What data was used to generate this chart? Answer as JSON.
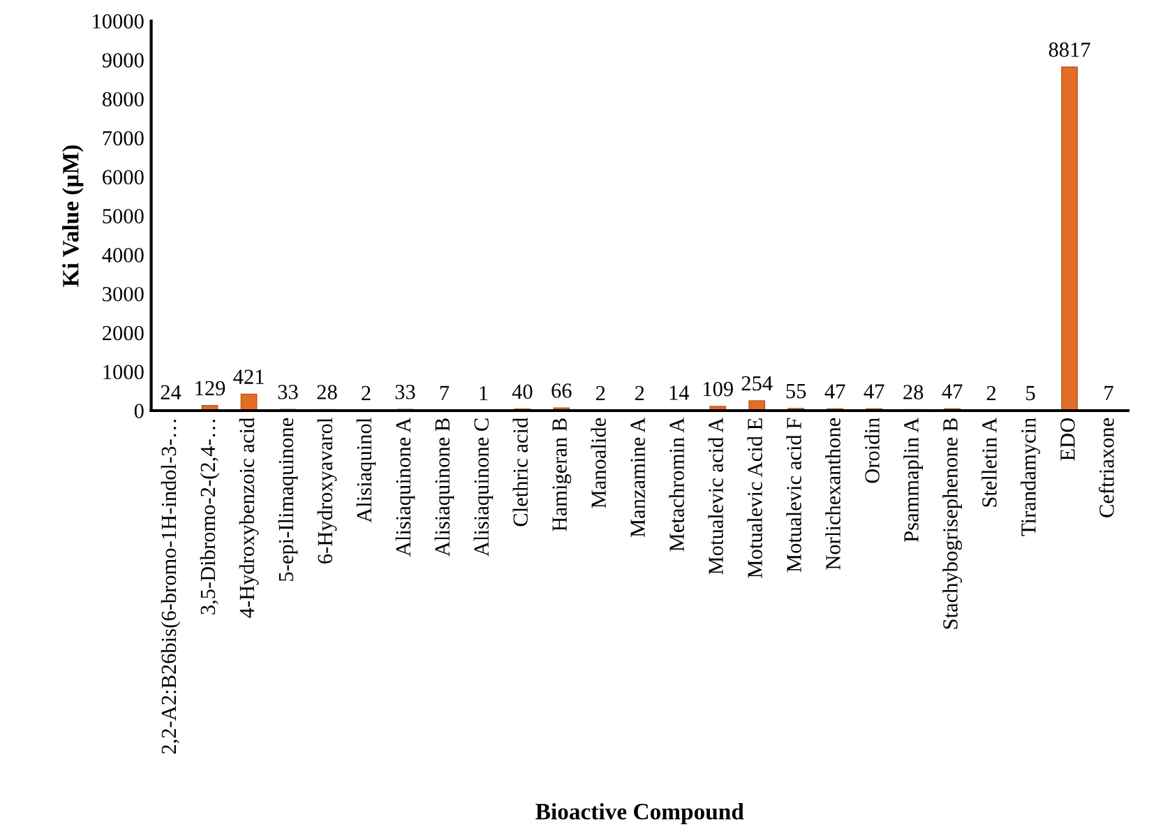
{
  "chart_data": {
    "type": "bar",
    "xlabel": "Bioactive Compound",
    "ylabel": "Ki Value (µM)",
    "categories": [
      "2,2-A2:B26bis(6-bromo-1H-indol-3-…",
      "3,5-Dibromo-2-(2,4-…",
      "4-Hydroxybenzoic acid",
      "5-epi-Ilimaquinone",
      "6-Hydroxyavarol",
      "Alisiaquinol",
      "Alisiaquinone A",
      "Alisiaquinone B",
      "Alisiaquinone C",
      "Clethric acid",
      "Hamigeran B",
      "Manoalide",
      "Manzamine A",
      "Metachromin A",
      "Motualevic acid A",
      "Motualevic Acid E",
      "Motualevic acid F",
      "Norlichexanthone",
      "Oroidin",
      "Psammaplin A",
      "Stachybogrisephenone B",
      "Stelletin A",
      "Tirandamycin",
      "EDO",
      "Ceftriaxone"
    ],
    "values": [
      24,
      129,
      421,
      33,
      28,
      2,
      33,
      7,
      1,
      40,
      66,
      2,
      2,
      14,
      109,
      254,
      55,
      47,
      47,
      28,
      47,
      2,
      5,
      8817,
      7
    ],
    "color": "#e36c26",
    "ylim": [
      0,
      10000
    ],
    "yticks": [
      0,
      1000,
      2000,
      3000,
      4000,
      5000,
      6000,
      7000,
      8000,
      9000,
      10000
    ],
    "data_labels": true
  }
}
